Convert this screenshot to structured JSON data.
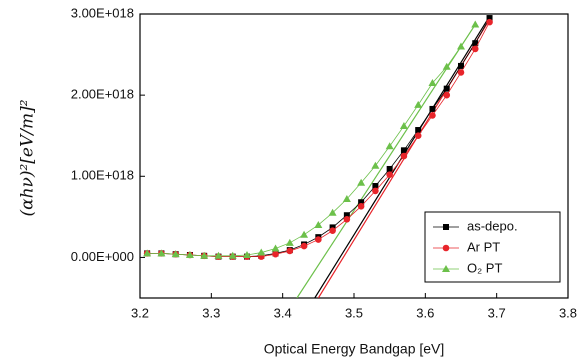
{
  "chart_data": {
    "type": "line",
    "xlabel": "Optical Energy Bandgap [eV]",
    "ylabel": "(αhν)²[eV/m]²",
    "x": [
      3.21,
      3.23,
      3.25,
      3.27,
      3.29,
      3.31,
      3.33,
      3.35,
      3.37,
      3.39,
      3.41,
      3.43,
      3.45,
      3.47,
      3.49,
      3.51,
      3.53,
      3.55,
      3.57,
      3.59,
      3.61,
      3.63,
      3.65,
      3.67,
      3.69
    ],
    "series": [
      {
        "name": "as-depo.",
        "color": "#000000",
        "marker": "square",
        "values": [
          5e+16,
          5e+16,
          4e+16,
          3e+16,
          2e+16,
          1e+16,
          1e+16,
          1e+16,
          2e+16,
          5e+16,
          9e+16,
          1.6e+17,
          2.5e+17,
          3.7e+17,
          5.2e+17,
          6.8e+17,
          8.8e+17,
          1.09e+18,
          1.32e+18,
          1.57e+18,
          1.83e+18,
          2.08e+18,
          2.36e+18,
          2.64e+18,
          2.95e+18
        ]
      },
      {
        "name": "Ar PT",
        "color": "#e8242a",
        "marker": "circle",
        "values": [
          5e+16,
          5e+16,
          4e+16,
          3e+16,
          2e+16,
          1e+16,
          1e+16,
          1e+16,
          1e+16,
          4e+16,
          8e+16,
          1.4e+17,
          2.2e+17,
          3.3e+17,
          4.7e+17,
          6.3e+17,
          8.2e+17,
          1.02e+18,
          1.25e+18,
          1.5e+18,
          1.75e+18,
          2e+18,
          2.28e+18,
          2.57e+18,
          2.9e+18
        ]
      },
      {
        "name": "O₂ PT",
        "color": "#6cc04a",
        "marker": "triangle",
        "values": [
          5e+16,
          5e+16,
          4e+16,
          3e+16,
          2e+16,
          2e+16,
          2e+16,
          3e+16,
          6e+16,
          1.1e+17,
          1.8e+17,
          2.8e+17,
          4e+17,
          5.5e+17,
          7.2e+17,
          9.2e+17,
          1.13e+18,
          1.37e+18,
          1.62e+18,
          1.88e+18,
          2.15e+18,
          2.35e+18,
          2.6e+18,
          2.87e+18,
          null
        ]
      }
    ],
    "fit_lines": [
      {
        "color": "#000000",
        "x": [
          3.445,
          3.69
        ],
        "values": [
          -5e+17,
          2.97e+18
        ]
      },
      {
        "color": "#e8242a",
        "x": [
          3.45,
          3.69
        ],
        "values": [
          -5e+17,
          2.93e+18
        ]
      },
      {
        "color": "#6cc04a",
        "x": [
          3.42,
          3.67
        ],
        "values": [
          -5e+17,
          2.87e+18
        ]
      }
    ],
    "xlim": [
      3.2,
      3.8
    ],
    "xticks": [
      3.2,
      3.3,
      3.4,
      3.5,
      3.6,
      3.7,
      3.8
    ],
    "ylim": [
      -5e+17,
      3e+18
    ],
    "yticks": [
      {
        "value": 0,
        "label": "0.00E+000"
      },
      {
        "value": 1e+18,
        "label": "1.00E+018"
      },
      {
        "value": 2e+18,
        "label": "2.00E+018"
      },
      {
        "value": 3e+18,
        "label": "3.00E+018"
      }
    ],
    "legend": "lower right"
  }
}
